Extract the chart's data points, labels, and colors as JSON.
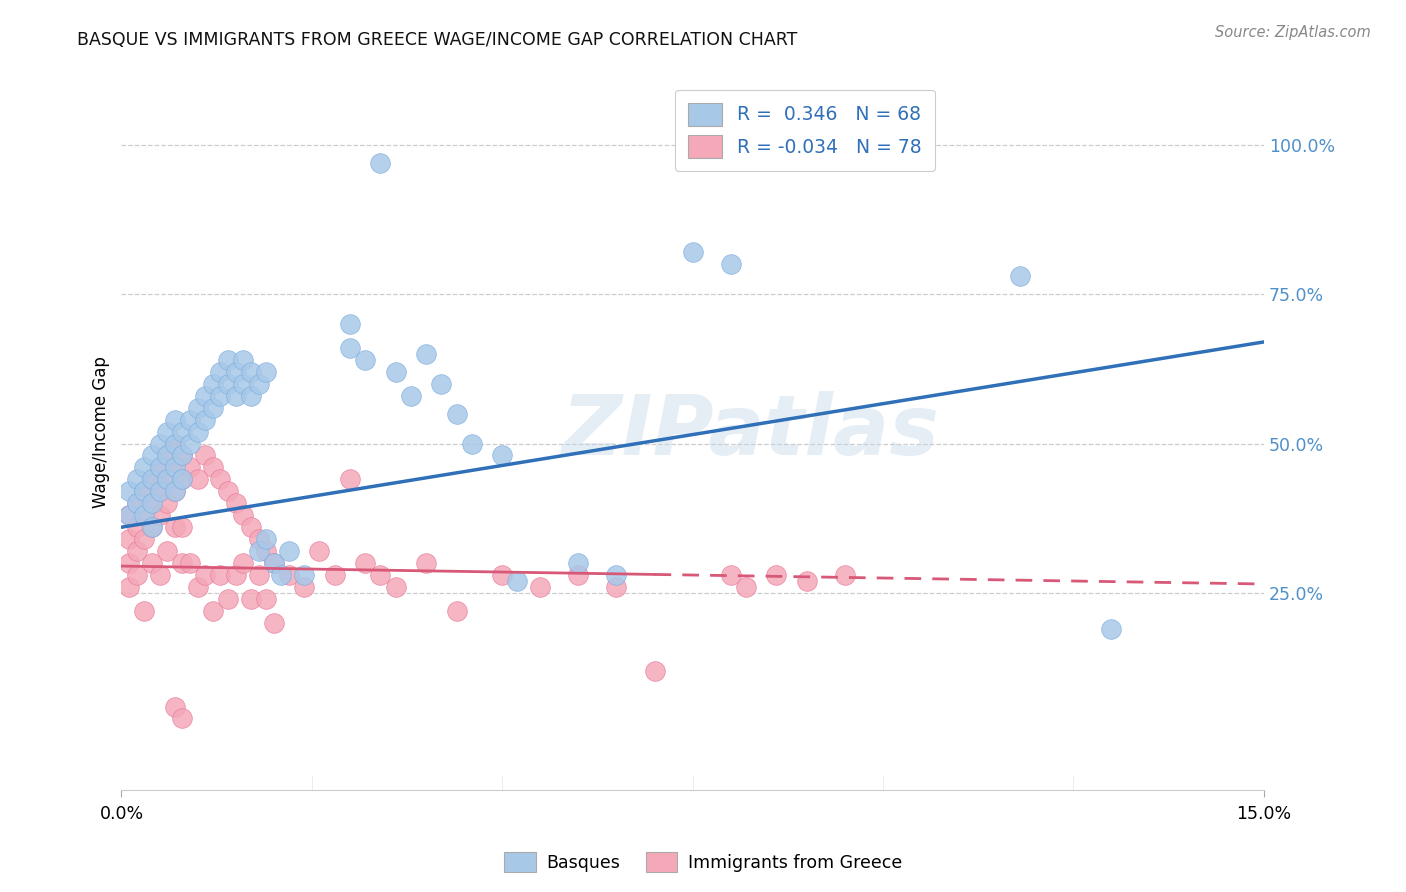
{
  "title": "BASQUE VS IMMIGRANTS FROM GREECE WAGE/INCOME GAP CORRELATION CHART",
  "source": "Source: ZipAtlas.com",
  "ylabel": "Wage/Income Gap",
  "xlim": [
    0.0,
    0.15
  ],
  "ylim": [
    -0.08,
    1.12
  ],
  "watermark": "ZIPatlas",
  "legend_line1": "R =  0.346   N = 68",
  "legend_line2": "R = -0.034   N = 78",
  "blue_color": "#a8c8e8",
  "pink_color": "#f4a8b8",
  "blue_edge_color": "#7aade0",
  "pink_edge_color": "#e87898",
  "blue_line_color": "#3070b8",
  "pink_line_color": "#d85878",
  "grid_color": "#cccccc",
  "bg_color": "#ffffff",
  "right_tick_color": "#5090c8",
  "ytick_vals": [
    0.25,
    0.5,
    0.75,
    1.0
  ],
  "ytick_labels": [
    "25.0%",
    "50.0%",
    "75.0%",
    "100.0%"
  ],
  "blue_trend_x": [
    0.0,
    0.15
  ],
  "blue_trend_y": [
    0.36,
    0.67
  ],
  "pink_trend_x": [
    0.0,
    0.15
  ],
  "pink_trend_y": [
    0.295,
    0.265
  ],
  "blue_points": [
    [
      0.001,
      0.42
    ],
    [
      0.001,
      0.38
    ],
    [
      0.002,
      0.44
    ],
    [
      0.002,
      0.4
    ],
    [
      0.003,
      0.46
    ],
    [
      0.003,
      0.42
    ],
    [
      0.003,
      0.38
    ],
    [
      0.004,
      0.48
    ],
    [
      0.004,
      0.44
    ],
    [
      0.004,
      0.4
    ],
    [
      0.004,
      0.36
    ],
    [
      0.005,
      0.5
    ],
    [
      0.005,
      0.46
    ],
    [
      0.005,
      0.42
    ],
    [
      0.006,
      0.52
    ],
    [
      0.006,
      0.48
    ],
    [
      0.006,
      0.44
    ],
    [
      0.007,
      0.54
    ],
    [
      0.007,
      0.5
    ],
    [
      0.007,
      0.46
    ],
    [
      0.007,
      0.42
    ],
    [
      0.008,
      0.52
    ],
    [
      0.008,
      0.48
    ],
    [
      0.008,
      0.44
    ],
    [
      0.009,
      0.54
    ],
    [
      0.009,
      0.5
    ],
    [
      0.01,
      0.56
    ],
    [
      0.01,
      0.52
    ],
    [
      0.011,
      0.58
    ],
    [
      0.011,
      0.54
    ],
    [
      0.012,
      0.6
    ],
    [
      0.012,
      0.56
    ],
    [
      0.013,
      0.62
    ],
    [
      0.013,
      0.58
    ],
    [
      0.014,
      0.64
    ],
    [
      0.014,
      0.6
    ],
    [
      0.015,
      0.62
    ],
    [
      0.015,
      0.58
    ],
    [
      0.016,
      0.64
    ],
    [
      0.016,
      0.6
    ],
    [
      0.017,
      0.62
    ],
    [
      0.017,
      0.58
    ],
    [
      0.018,
      0.6
    ],
    [
      0.018,
      0.32
    ],
    [
      0.019,
      0.62
    ],
    [
      0.019,
      0.34
    ],
    [
      0.02,
      0.3
    ],
    [
      0.021,
      0.28
    ],
    [
      0.022,
      0.32
    ],
    [
      0.024,
      0.28
    ],
    [
      0.03,
      0.7
    ],
    [
      0.03,
      0.66
    ],
    [
      0.032,
      0.64
    ],
    [
      0.034,
      0.97
    ],
    [
      0.036,
      0.62
    ],
    [
      0.038,
      0.58
    ],
    [
      0.04,
      0.65
    ],
    [
      0.042,
      0.6
    ],
    [
      0.044,
      0.55
    ],
    [
      0.046,
      0.5
    ],
    [
      0.05,
      0.48
    ],
    [
      0.052,
      0.27
    ],
    [
      0.06,
      0.3
    ],
    [
      0.065,
      0.28
    ],
    [
      0.075,
      0.82
    ],
    [
      0.08,
      0.8
    ],
    [
      0.118,
      0.78
    ],
    [
      0.13,
      0.19
    ]
  ],
  "pink_points": [
    [
      0.001,
      0.38
    ],
    [
      0.001,
      0.34
    ],
    [
      0.001,
      0.3
    ],
    [
      0.001,
      0.26
    ],
    [
      0.002,
      0.4
    ],
    [
      0.002,
      0.36
    ],
    [
      0.002,
      0.32
    ],
    [
      0.002,
      0.28
    ],
    [
      0.003,
      0.42
    ],
    [
      0.003,
      0.38
    ],
    [
      0.003,
      0.34
    ],
    [
      0.003,
      0.22
    ],
    [
      0.004,
      0.44
    ],
    [
      0.004,
      0.4
    ],
    [
      0.004,
      0.36
    ],
    [
      0.004,
      0.3
    ],
    [
      0.005,
      0.46
    ],
    [
      0.005,
      0.42
    ],
    [
      0.005,
      0.38
    ],
    [
      0.005,
      0.28
    ],
    [
      0.006,
      0.48
    ],
    [
      0.006,
      0.44
    ],
    [
      0.006,
      0.4
    ],
    [
      0.006,
      0.32
    ],
    [
      0.007,
      0.5
    ],
    [
      0.007,
      0.46
    ],
    [
      0.007,
      0.42
    ],
    [
      0.007,
      0.36
    ],
    [
      0.008,
      0.48
    ],
    [
      0.008,
      0.44
    ],
    [
      0.008,
      0.36
    ],
    [
      0.008,
      0.3
    ],
    [
      0.009,
      0.46
    ],
    [
      0.009,
      0.3
    ],
    [
      0.01,
      0.44
    ],
    [
      0.01,
      0.26
    ],
    [
      0.011,
      0.48
    ],
    [
      0.011,
      0.28
    ],
    [
      0.012,
      0.46
    ],
    [
      0.012,
      0.22
    ],
    [
      0.013,
      0.44
    ],
    [
      0.013,
      0.28
    ],
    [
      0.014,
      0.42
    ],
    [
      0.014,
      0.24
    ],
    [
      0.015,
      0.4
    ],
    [
      0.015,
      0.28
    ],
    [
      0.016,
      0.38
    ],
    [
      0.016,
      0.3
    ],
    [
      0.017,
      0.36
    ],
    [
      0.017,
      0.24
    ],
    [
      0.018,
      0.34
    ],
    [
      0.018,
      0.28
    ],
    [
      0.019,
      0.32
    ],
    [
      0.019,
      0.24
    ],
    [
      0.02,
      0.3
    ],
    [
      0.02,
      0.2
    ],
    [
      0.022,
      0.28
    ],
    [
      0.024,
      0.26
    ],
    [
      0.026,
      0.32
    ],
    [
      0.028,
      0.28
    ],
    [
      0.03,
      0.44
    ],
    [
      0.032,
      0.3
    ],
    [
      0.034,
      0.28
    ],
    [
      0.036,
      0.26
    ],
    [
      0.04,
      0.3
    ],
    [
      0.044,
      0.22
    ],
    [
      0.05,
      0.28
    ],
    [
      0.055,
      0.26
    ],
    [
      0.06,
      0.28
    ],
    [
      0.065,
      0.26
    ],
    [
      0.07,
      0.12
    ],
    [
      0.08,
      0.28
    ],
    [
      0.082,
      0.26
    ],
    [
      0.086,
      0.28
    ],
    [
      0.09,
      0.27
    ],
    [
      0.095,
      0.28
    ],
    [
      0.007,
      0.06
    ],
    [
      0.008,
      0.04
    ]
  ]
}
